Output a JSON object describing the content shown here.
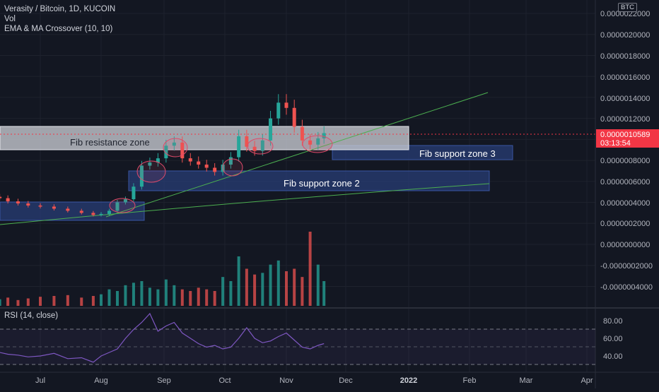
{
  "header": {
    "symbol_line": "Verasity / Bitcoin, 1D, KUCOIN",
    "vol_label": "Vol",
    "ema_label": "EMA & MA Crossover (10, 10)",
    "rsi_label": "RSI (14, close)",
    "currency_badge": "BTC"
  },
  "price_axis": {
    "labels": [
      "0.0000022000",
      "0.0000020000",
      "0.0000018000",
      "0.0000016000",
      "0.0000014000",
      "0.0000012000",
      "0.0000008000",
      "0.0000006000",
      "0.0000004000",
      "0.0000002000",
      "0.0000000000",
      "-0.0000002000",
      "-0.0000004000"
    ],
    "last_price": "0.0000010589",
    "countdown": "03:13:54",
    "last_price_color": "#f23645"
  },
  "rsi_axis": {
    "labels": [
      "80.00",
      "60.00",
      "40.00"
    ]
  },
  "time_axis": {
    "labels": [
      "Jul",
      "Aug",
      "Sep",
      "Oct",
      "Nov",
      "Dec",
      "2022",
      "Feb",
      "Mar",
      "Apr"
    ]
  },
  "annotations": {
    "fib_resistance": "Fib resistance zone",
    "fib_support_3": "Fib support zone 3",
    "fib_support_2": "Fib support zone 2"
  },
  "colors": {
    "background": "#131722",
    "up": "#26a69a",
    "down": "#ef5350",
    "trendline": "#4caf50",
    "zone_fill": "#283d75",
    "resistance_fill": "#c9ccd4",
    "rsi_line": "#7e57c2",
    "ellipse": "#e04a6a"
  },
  "chart_data": [
    {
      "type": "candlestick",
      "ylim": [
        -4.5e-07,
        2.2e-06
      ],
      "x": [
        "Jun 11",
        "Jun 15",
        "Jun 20",
        "Jun 25",
        "Jul 1",
        "Jul 8",
        "Jul 15",
        "Jul 22",
        "Jul 28",
        "Aug 1",
        "Aug 5",
        "Aug 9",
        "Aug 13",
        "Aug 17",
        "Aug 21",
        "Aug 25",
        "Aug 29",
        "Sep 2",
        "Sep 6",
        "Sep 10",
        "Sep 14",
        "Sep 18",
        "Sep 22",
        "Sep 26",
        "Sep 30",
        "Oct 4",
        "Oct 8",
        "Oct 12",
        "Oct 16",
        "Oct 20",
        "Oct 24",
        "Oct 28",
        "Nov 1",
        "Nov 5",
        "Nov 9",
        "Nov 13",
        "Nov 17",
        "Nov 20"
      ],
      "close": [
        4.4e-07,
        4.1e-07,
        3.9e-07,
        3.7e-07,
        3.6e-07,
        3.4e-07,
        3.2e-07,
        3e-07,
        2.8e-07,
        2.9e-07,
        3.2e-07,
        4e-07,
        4.3e-07,
        5.5e-07,
        7.5e-07,
        7.8e-07,
        8.2e-07,
        9.4e-07,
        9.7e-07,
        8.2e-07,
        7.9e-07,
        7.6e-07,
        7.3e-07,
        6.9e-07,
        7.6e-07,
        8.3e-07,
        1.03e-06,
        9.3e-07,
        8.9e-07,
        9.9e-07,
        1.2e-06,
        1.35e-06,
        1.3e-06,
        1.12e-06,
        9.9e-07,
        9.5e-07,
        1.01e-06,
        1.06e-06
      ]
    },
    {
      "type": "bar",
      "name": "Vol",
      "x": [
        "Jun 11",
        "Jun 15",
        "Jun 20",
        "Jun 25",
        "Jul 1",
        "Jul 8",
        "Jul 15",
        "Jul 22",
        "Jul 28",
        "Aug 1",
        "Aug 5",
        "Aug 9",
        "Aug 13",
        "Aug 17",
        "Aug 21",
        "Aug 25",
        "Aug 29",
        "Sep 2",
        "Sep 6",
        "Sep 10",
        "Sep 14",
        "Sep 18",
        "Sep 22",
        "Sep 26",
        "Sep 30",
        "Oct 4",
        "Oct 8",
        "Oct 12",
        "Oct 16",
        "Oct 20",
        "Oct 24",
        "Oct 28",
        "Nov 1",
        "Nov 5",
        "Nov 9",
        "Nov 13",
        "Nov 17",
        "Nov 20"
      ],
      "values": [
        0.08,
        0.1,
        0.07,
        0.09,
        0.11,
        0.12,
        0.13,
        0.1,
        0.12,
        0.14,
        0.2,
        0.18,
        0.25,
        0.28,
        0.3,
        0.22,
        0.2,
        0.32,
        0.25,
        0.2,
        0.18,
        0.22,
        0.2,
        0.18,
        0.35,
        0.3,
        0.6,
        0.45,
        0.38,
        0.4,
        0.5,
        0.55,
        0.42,
        0.45,
        0.35,
        0.9,
        0.5,
        0.3
      ]
    },
    {
      "type": "line",
      "name": "RSI (14, close)",
      "ylim": [
        25,
        95
      ],
      "x": [
        "Jun 11",
        "Jun 15",
        "Jun 20",
        "Jun 25",
        "Jul 1",
        "Jul 8",
        "Jul 15",
        "Jul 22",
        "Jul 28",
        "Aug 1",
        "Aug 5",
        "Aug 9",
        "Aug 13",
        "Aug 17",
        "Aug 21",
        "Aug 25",
        "Aug 29",
        "Sep 2",
        "Sep 6",
        "Sep 10",
        "Sep 14",
        "Sep 18",
        "Sep 22",
        "Sep 26",
        "Sep 30",
        "Oct 4",
        "Oct 8",
        "Oct 12",
        "Oct 16",
        "Oct 20",
        "Oct 24",
        "Oct 28",
        "Nov 1",
        "Nov 5",
        "Nov 9",
        "Nov 13",
        "Nov 17",
        "Nov 20"
      ],
      "values": [
        44,
        42,
        41,
        39,
        40,
        43,
        37,
        38,
        33,
        40,
        44,
        48,
        60,
        70,
        78,
        88,
        68,
        74,
        78,
        66,
        60,
        54,
        50,
        52,
        48,
        50,
        60,
        72,
        60,
        55,
        57,
        62,
        66,
        58,
        50,
        48,
        52,
        54
      ]
    }
  ]
}
